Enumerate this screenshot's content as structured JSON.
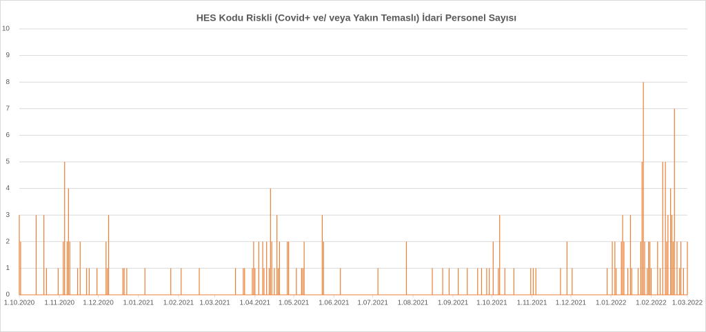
{
  "chart_data": {
    "type": "spike",
    "title": "HES Kodu Riskli (Covid+ ve/ veya Yakın Temaslı) İdari Personel Sayısı",
    "color": "#ed7d31",
    "grid": true,
    "ylim": [
      0,
      10
    ],
    "yticks": [
      0,
      1,
      2,
      3,
      4,
      5,
      6,
      7,
      8,
      9,
      10
    ],
    "xlim": [
      "1.10.2020",
      "1.03.2022"
    ],
    "xticks": [
      "1.10.2020",
      "1.11.2020",
      "1.12.2020",
      "1.01.2021",
      "1.02.2021",
      "1.03.2021",
      "1.04.2021",
      "1.05.2021",
      "1.06.2021",
      "1.07.2021",
      "1.08.2021",
      "1.09.2021",
      "1.10.2021",
      "1.11.2021",
      "1.12.2021",
      "1.01.2022",
      "1.02.2022",
      "1.03.2022"
    ],
    "x": [
      "1.10.2020",
      "2.10.2020",
      "14.10.2020",
      "20.10.2020",
      "22.10.2020",
      "31.10.2020",
      "4.11.2020",
      "5.11.2020",
      "7.11.2020",
      "8.11.2020",
      "9.11.2020",
      "15.11.2020",
      "17.11.2020",
      "22.11.2020",
      "24.11.2020",
      "30.11.2020",
      "7.12.2020",
      "8.12.2020",
      "9.12.2020",
      "20.12.2020",
      "21.12.2020",
      "23.12.2020",
      "6.01.2021",
      "26.01.2021",
      "3.02.2021",
      "17.02.2021",
      "17.03.2021",
      "23.03.2021",
      "24.03.2021",
      "30.03.2021",
      "31.03.2021",
      "1.04.2021",
      "4.04.2021",
      "7.04.2021",
      "8.04.2021",
      "10.04.2021",
      "12.04.2021",
      "13.04.2021",
      "14.04.2021",
      "16.04.2021",
      "18.04.2021",
      "19.04.2021",
      "20.04.2021",
      "26.04.2021",
      "27.04.2021",
      "3.05.2021",
      "7.05.2021",
      "8.05.2021",
      "9.05.2021",
      "23.05.2021",
      "24.05.2021",
      "6.06.2021",
      "5.07.2021",
      "27.07.2021",
      "16.08.2021",
      "24.08.2021",
      "29.08.2021",
      "5.09.2021",
      "12.09.2021",
      "20.09.2021",
      "23.09.2021",
      "27.09.2021",
      "29.09.2021",
      "2.10.2021",
      "6.10.2021",
      "7.10.2021",
      "11.10.2021",
      "18.10.2021",
      "31.10.2021",
      "2.11.2021",
      "4.11.2021",
      "23.11.2021",
      "28.11.2021",
      "2.12.2021",
      "29.12.2021",
      "2.01.2022",
      "4.01.2022",
      "5.01.2022",
      "9.01.2022",
      "10.01.2022",
      "11.01.2022",
      "14.01.2022",
      "16.01.2022",
      "17.01.2022",
      "22.01.2022",
      "24.01.2022",
      "25.01.2022",
      "26.01.2022",
      "27.01.2022",
      "29.01.2022",
      "30.01.2022",
      "31.01.2022",
      "1.02.2022",
      "6.02.2022",
      "8.02.2022",
      "10.02.2022",
      "12.02.2022",
      "13.02.2022",
      "14.02.2022",
      "16.02.2022",
      "17.02.2022",
      "18.02.2022",
      "19.02.2022",
      "21.02.2022",
      "23.02.2022",
      "24.02.2022",
      "26.02.2022",
      "1.03.2022"
    ],
    "values": [
      3,
      2,
      3,
      3,
      1,
      1,
      2,
      5,
      2,
      4,
      2,
      1,
      2,
      1,
      1,
      1,
      2,
      1,
      3,
      1,
      1,
      1,
      1,
      1,
      1,
      1,
      1,
      1,
      1,
      1,
      2,
      1,
      2,
      2,
      1,
      2,
      1,
      4,
      2,
      1,
      3,
      1,
      2,
      2,
      2,
      1,
      1,
      1,
      2,
      3,
      2,
      1,
      1,
      2,
      1,
      1,
      1,
      1,
      1,
      1,
      1,
      1,
      1,
      2,
      1,
      3,
      1,
      1,
      1,
      1,
      1,
      1,
      2,
      1,
      1,
      2,
      2,
      1,
      2,
      3,
      2,
      1,
      3,
      1,
      1,
      2,
      5,
      8,
      2,
      1,
      2,
      2,
      1,
      2,
      1,
      5,
      5,
      2,
      3,
      4,
      3,
      2,
      7,
      2,
      1,
      2,
      1,
      2
    ]
  }
}
